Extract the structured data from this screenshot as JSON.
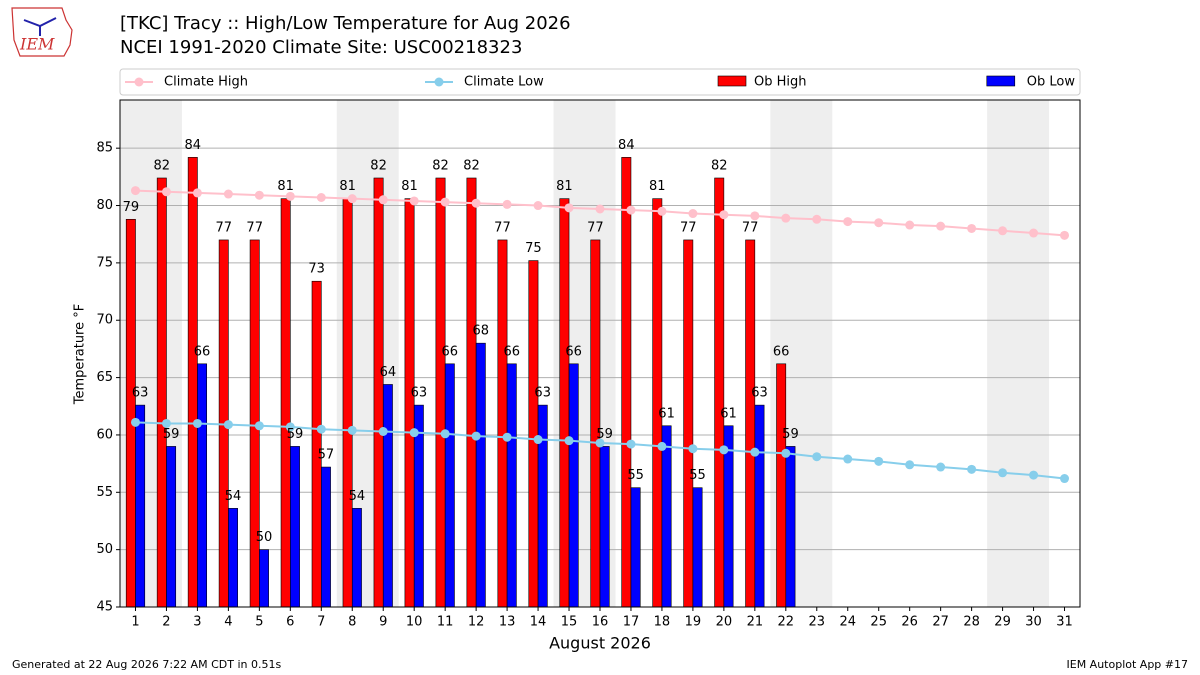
{
  "chart_data": {
    "type": "bar",
    "logo_text": "IEM",
    "title": "[TKC] Tracy :: High/Low Temperature for Aug 2026",
    "subtitle": "NCEI 1991-2020 Climate Site: USC00218323",
    "x_label": "August 2026",
    "y_label": "Temperature °F",
    "footer_left": "Generated at 22 Aug 2026 7:22 AM CDT in 0.51s",
    "footer_right": "IEM Autoplot App #17",
    "x": [
      1,
      2,
      3,
      4,
      5,
      6,
      7,
      8,
      9,
      10,
      11,
      12,
      13,
      14,
      15,
      16,
      17,
      18,
      19,
      20,
      21,
      22,
      23,
      24,
      25,
      26,
      27,
      28,
      29,
      30,
      31
    ],
    "xlim": [
      0.5,
      31.5
    ],
    "xticks": [
      1,
      2,
      3,
      4,
      5,
      6,
      7,
      8,
      9,
      10,
      11,
      12,
      13,
      14,
      15,
      16,
      17,
      18,
      19,
      20,
      21,
      22,
      23,
      24,
      25,
      26,
      27,
      28,
      29,
      30,
      31
    ],
    "ylim": [
      45,
      89.2
    ],
    "yticks": [
      45,
      50,
      55,
      60,
      65,
      70,
      75,
      80,
      85
    ],
    "grid": true,
    "highlight_spans": [
      [
        0.5,
        2.5
      ],
      [
        7.5,
        9.5
      ],
      [
        14.5,
        16.5
      ],
      [
        21.5,
        23.5
      ],
      [
        28.5,
        30.5
      ]
    ],
    "highlight_color": "#eeeeee",
    "series": [
      {
        "name": "Climate High",
        "kind": "line",
        "color": "#ffc0cb",
        "values": [
          81.3,
          81.2,
          81.1,
          81.0,
          80.9,
          80.8,
          80.7,
          80.6,
          80.5,
          80.4,
          80.3,
          80.2,
          80.1,
          80.0,
          79.8,
          79.7,
          79.6,
          79.5,
          79.3,
          79.2,
          79.1,
          78.9,
          78.8,
          78.6,
          78.5,
          78.3,
          78.2,
          78.0,
          77.8,
          77.6,
          77.4
        ]
      },
      {
        "name": "Climate Low",
        "kind": "line",
        "color": "#87ceeb",
        "values": [
          61.1,
          61.0,
          61.0,
          60.9,
          60.8,
          60.7,
          60.5,
          60.4,
          60.3,
          60.2,
          60.1,
          59.9,
          59.8,
          59.6,
          59.5,
          59.3,
          59.2,
          59.0,
          58.8,
          58.7,
          58.5,
          58.4,
          58.1,
          57.9,
          57.7,
          57.4,
          57.2,
          57.0,
          56.7,
          56.5,
          56.2
        ]
      },
      {
        "name": "Ob High",
        "kind": "bar",
        "color": "#ff0000",
        "values": [
          78.8,
          82.4,
          84.2,
          77.0,
          77.0,
          80.6,
          73.4,
          80.6,
          82.4,
          80.6,
          82.4,
          82.4,
          77.0,
          75.2,
          80.6,
          77.0,
          84.2,
          80.6,
          77.0,
          82.4,
          77.0,
          66.2,
          null,
          null,
          null,
          null,
          null,
          null,
          null,
          null,
          null
        ],
        "value_labels": [
          "79",
          "82",
          "84",
          "77",
          "77",
          "81",
          "73",
          "81",
          "82",
          "81",
          "82",
          "82",
          "77",
          "75",
          "81",
          "77",
          "84",
          "81",
          "77",
          "82",
          "77",
          "66",
          null,
          null,
          null,
          null,
          null,
          null,
          null,
          null,
          null
        ]
      },
      {
        "name": "Ob Low",
        "kind": "bar",
        "color": "#0000ff",
        "values": [
          62.6,
          59.0,
          66.2,
          53.6,
          50.0,
          59.0,
          57.2,
          53.6,
          64.4,
          62.6,
          66.2,
          68.0,
          66.2,
          62.6,
          66.2,
          59.0,
          55.4,
          60.8,
          55.4,
          60.8,
          62.6,
          59.0,
          null,
          null,
          null,
          null,
          null,
          null,
          null,
          null,
          null
        ],
        "value_labels": [
          "63",
          "59",
          "66",
          "54",
          "50",
          "59",
          "57",
          "54",
          "64",
          "63",
          "66",
          "68",
          "66",
          "63",
          "66",
          "59",
          "55",
          "61",
          "55",
          "61",
          "63",
          "59",
          null,
          null,
          null,
          null,
          null,
          null,
          null,
          null,
          null
        ]
      }
    ]
  }
}
